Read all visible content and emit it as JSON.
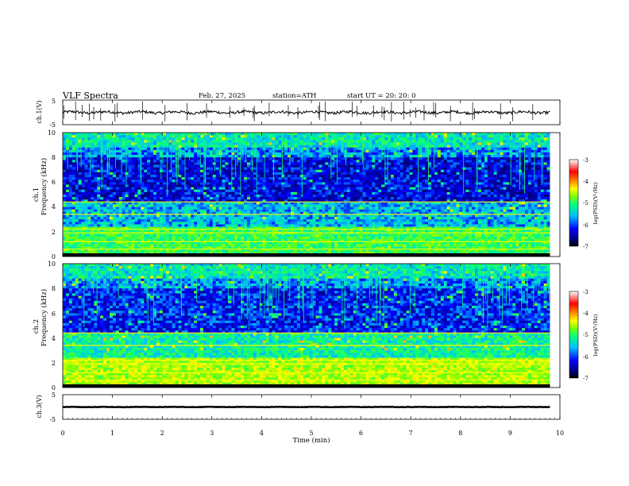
{
  "header": {
    "title": "VLF  Spectra",
    "date": "Feb. 27, 2025",
    "station": "station=ATH",
    "start": "start  UT  =   20: 20: 0"
  },
  "chart_data": [
    {
      "type": "line",
      "panel": "ch1-waveform",
      "ylabel": "ch.1(V)",
      "yticks": [
        "5",
        "-5"
      ],
      "ylim": [
        -5,
        5
      ],
      "xlim": [
        0,
        10
      ],
      "series": [
        {
          "values_desc": "noisy waveform",
          "mean": 0,
          "trace_end_min": 9.8
        }
      ]
    },
    {
      "type": "heatmap",
      "panel": "ch1-spectrogram",
      "ylabel_top": "ch.1",
      "ylabel": "Frequency  (kHz)",
      "ylim": [
        0,
        10
      ],
      "yticks": [
        "0",
        "2",
        "4",
        "6",
        "8",
        "10"
      ],
      "xlim": [
        0,
        10
      ],
      "data_end_min": 9.8,
      "colorbar": {
        "label": "log(PSD)(V²/Hz)",
        "range": [
          -7,
          -3
        ],
        "ticks": [
          "-3",
          "-4",
          "-5",
          "-6",
          "-7"
        ]
      }
    },
    {
      "type": "heatmap",
      "panel": "ch2-spectrogram",
      "ylabel_top": "ch.2",
      "ylabel": "Frequency  (kHz)",
      "ylim": [
        0,
        10
      ],
      "yticks": [
        "0",
        "2",
        "4",
        "6",
        "8",
        "10"
      ],
      "xlim": [
        0,
        10
      ],
      "data_end_min": 9.8,
      "colorbar": {
        "label": "log(PSD)(V²/Hz)",
        "range": [
          -7,
          -3
        ],
        "ticks": [
          "-3",
          "-4",
          "-5",
          "-6",
          "-7"
        ]
      }
    },
    {
      "type": "line",
      "panel": "ch3-waveform",
      "ylabel": "ch.3(V)",
      "yticks": [
        "5",
        "-5"
      ],
      "ylim": [
        -5,
        5
      ],
      "xlim": [
        0,
        10
      ],
      "series": [
        {
          "values_desc": "flat trace",
          "mean": 0,
          "trace_end_min": 9.8
        }
      ]
    }
  ],
  "xaxis": {
    "label": "Time  (min)",
    "ticks": [
      "0",
      "1",
      "2",
      "3",
      "4",
      "5",
      "6",
      "7",
      "8",
      "9",
      "10"
    ]
  },
  "colors": {
    "line": "#000000",
    "cmap": [
      "#000000",
      "#000080",
      "#0000ff",
      "#00c0ff",
      "#00ff80",
      "#80ff00",
      "#ffff00",
      "#ff8000",
      "#ff0000",
      "#ffffff"
    ]
  }
}
